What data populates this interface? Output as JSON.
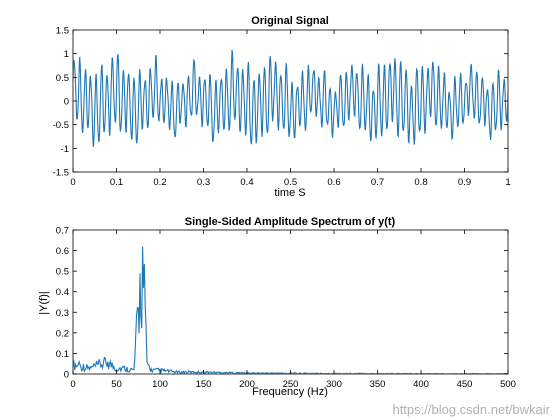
{
  "watermark": "https://blog.csdn.net/bwkair",
  "colors": {
    "line": "#1f77b4",
    "axis": "#000000",
    "background": "#ffffff"
  },
  "chart_data": [
    {
      "type": "line",
      "title": "Original Signal",
      "xlabel": "time S",
      "ylabel": "",
      "xlim": [
        0,
        1
      ],
      "ylim": [
        -1.5,
        1.5
      ],
      "xticks": [
        "0",
        "0.1",
        "0.2",
        "0.3",
        "0.4",
        "0.5",
        "0.6",
        "0.7",
        "0.8",
        "0.9",
        "1"
      ],
      "yticks": [
        "-1.5",
        "-1",
        "-0.5",
        "0",
        "0.5",
        "1",
        "1.5"
      ],
      "grid": false,
      "series": [
        {
          "x": [
            0,
            0.1,
            0.2,
            0.3,
            0.4,
            0.5,
            0.6,
            0.7,
            0.8,
            0.9,
            1.0
          ],
          "y": [
            0.5,
            0.6,
            0.7,
            -0.8,
            0.6,
            1.1,
            -0.7,
            0.8,
            -0.9,
            0.6,
            0.8
          ]
        }
      ]
    },
    {
      "type": "line",
      "title": "Single-Sided Amplitude Spectrum of y(t)",
      "xlabel": "Frequency (Hz)",
      "ylabel": "|Y(f)|",
      "xlim": [
        0,
        500
      ],
      "ylim": [
        0,
        0.7
      ],
      "xticks": [
        "0",
        "50",
        "100",
        "150",
        "200",
        "250",
        "300",
        "350",
        "400",
        "450",
        "500"
      ],
      "yticks": [
        "0",
        "0.1",
        "0.2",
        "0.3",
        "0.4",
        "0.5",
        "0.6",
        "0.7"
      ],
      "grid": false,
      "series": [
        {
          "x": [
            0,
            10,
            20,
            30,
            40,
            50,
            60,
            70,
            80,
            85,
            90,
            100,
            120,
            150,
            200,
            300,
            400,
            500
          ],
          "y": [
            0.05,
            0.04,
            0.03,
            0.05,
            0.06,
            0.03,
            0.03,
            0.02,
            0.62,
            0.06,
            0.02,
            0.02,
            0.01,
            0.01,
            0.005,
            0.003,
            0.002,
            0.002
          ]
        }
      ]
    }
  ]
}
